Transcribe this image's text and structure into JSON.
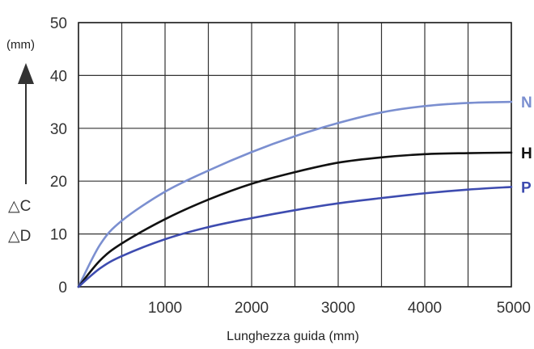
{
  "chart_data": {
    "type": "line",
    "xlabel": "Lunghezza guida (mm)",
    "ylabel_unit": "(mm)",
    "ylabel_symbols": [
      "△C",
      "△D"
    ],
    "xlim": [
      0,
      5000
    ],
    "ylim": [
      0,
      50
    ],
    "x_ticks": [
      0,
      1000,
      2000,
      3000,
      4000,
      5000
    ],
    "y_ticks": [
      0,
      10,
      20,
      30,
      40,
      50
    ],
    "x_tick_labels": [
      "1000",
      "2000",
      "3000",
      "4000",
      "5000"
    ],
    "y_tick_labels": [
      "0",
      "10",
      "20",
      "30",
      "40",
      "50"
    ],
    "grid": true,
    "series": [
      {
        "name": "N",
        "color": "#7b8fd0",
        "x": [
          0,
          250,
          500,
          1000,
          1500,
          2000,
          2500,
          3000,
          3500,
          4000,
          4500,
          5000
        ],
        "y": [
          0,
          8,
          12.5,
          18,
          22,
          25.5,
          28.5,
          31,
          33,
          34.2,
          34.8,
          35
        ]
      },
      {
        "name": "H",
        "color": "#111111",
        "x": [
          0,
          250,
          500,
          1000,
          1500,
          2000,
          2500,
          3000,
          3500,
          4000,
          4500,
          5000
        ],
        "y": [
          0,
          5,
          8.2,
          12.8,
          16.5,
          19.5,
          21.7,
          23.5,
          24.5,
          25.1,
          25.3,
          25.4
        ]
      },
      {
        "name": "P",
        "color": "#3e4cb0",
        "x": [
          0,
          250,
          500,
          1000,
          1500,
          2000,
          2500,
          3000,
          3500,
          4000,
          4500,
          5000
        ],
        "y": [
          0,
          3.5,
          5.8,
          9,
          11.3,
          13,
          14.5,
          15.8,
          16.8,
          17.7,
          18.4,
          18.9
        ]
      }
    ]
  }
}
